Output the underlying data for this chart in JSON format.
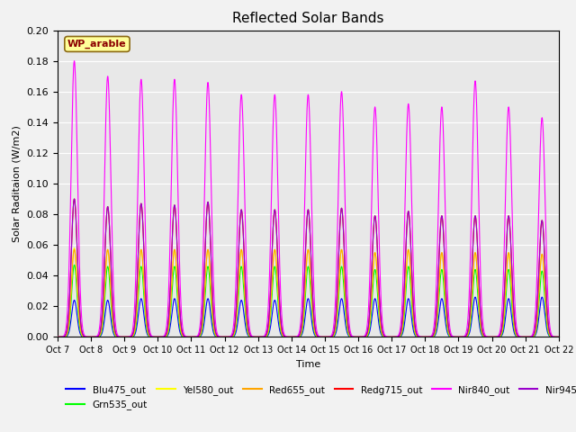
{
  "title": "Reflected Solar Bands",
  "xlabel": "Time",
  "ylabel": "Solar Raditaion (W/m2)",
  "annotation": "WP_arable",
  "annotation_color": "#8B0000",
  "annotation_bg": "#FFFF99",
  "annotation_border": "#8B6914",
  "ylim": [
    0,
    0.2
  ],
  "yticks": [
    0.0,
    0.02,
    0.04,
    0.06,
    0.08,
    0.1,
    0.12,
    0.14,
    0.16,
    0.18,
    0.2
  ],
  "xtick_labels": [
    "Oct 7",
    "Oct 8",
    "Oct 9",
    "Oct 10",
    "Oct 11",
    "Oct 12",
    "Oct 13",
    "Oct 14",
    "Oct 15",
    "Oct 16",
    "Oct 17",
    "Oct 18",
    "Oct 19",
    "Oct 20",
    "Oct 21",
    "Oct 22"
  ],
  "num_days": 15,
  "background_color": "#E8E8E8",
  "grid_color": "#FFFFFF",
  "peaks_nir840": [
    0.18,
    0.17,
    0.168,
    0.168,
    0.166,
    0.158,
    0.158,
    0.158,
    0.16,
    0.15,
    0.152,
    0.15,
    0.167,
    0.15,
    0.143
  ],
  "peaks_redg715": [
    0.09,
    0.085,
    0.087,
    0.086,
    0.088,
    0.083,
    0.083,
    0.083,
    0.084,
    0.079,
    0.082,
    0.079,
    0.079,
    0.079,
    0.076
  ],
  "peaks_nir945": [
    0.09,
    0.085,
    0.087,
    0.086,
    0.088,
    0.083,
    0.083,
    0.083,
    0.084,
    0.079,
    0.082,
    0.079,
    0.079,
    0.079,
    0.076
  ],
  "peaks_red655": [
    0.057,
    0.057,
    0.057,
    0.057,
    0.057,
    0.057,
    0.057,
    0.057,
    0.057,
    0.055,
    0.057,
    0.055,
    0.055,
    0.055,
    0.054
  ],
  "peaks_grn535": [
    0.047,
    0.046,
    0.046,
    0.046,
    0.046,
    0.046,
    0.046,
    0.046,
    0.046,
    0.044,
    0.046,
    0.044,
    0.044,
    0.044,
    0.043
  ],
  "peaks_yel580": [
    0.058,
    0.057,
    0.057,
    0.057,
    0.057,
    0.057,
    0.057,
    0.057,
    0.057,
    0.055,
    0.057,
    0.055,
    0.055,
    0.055,
    0.054
  ],
  "peaks_blu475": [
    0.024,
    0.024,
    0.025,
    0.025,
    0.025,
    0.024,
    0.024,
    0.025,
    0.025,
    0.025,
    0.025,
    0.025,
    0.026,
    0.025,
    0.026
  ],
  "fig_width": 6.4,
  "fig_height": 4.8,
  "fig_dpi": 100
}
